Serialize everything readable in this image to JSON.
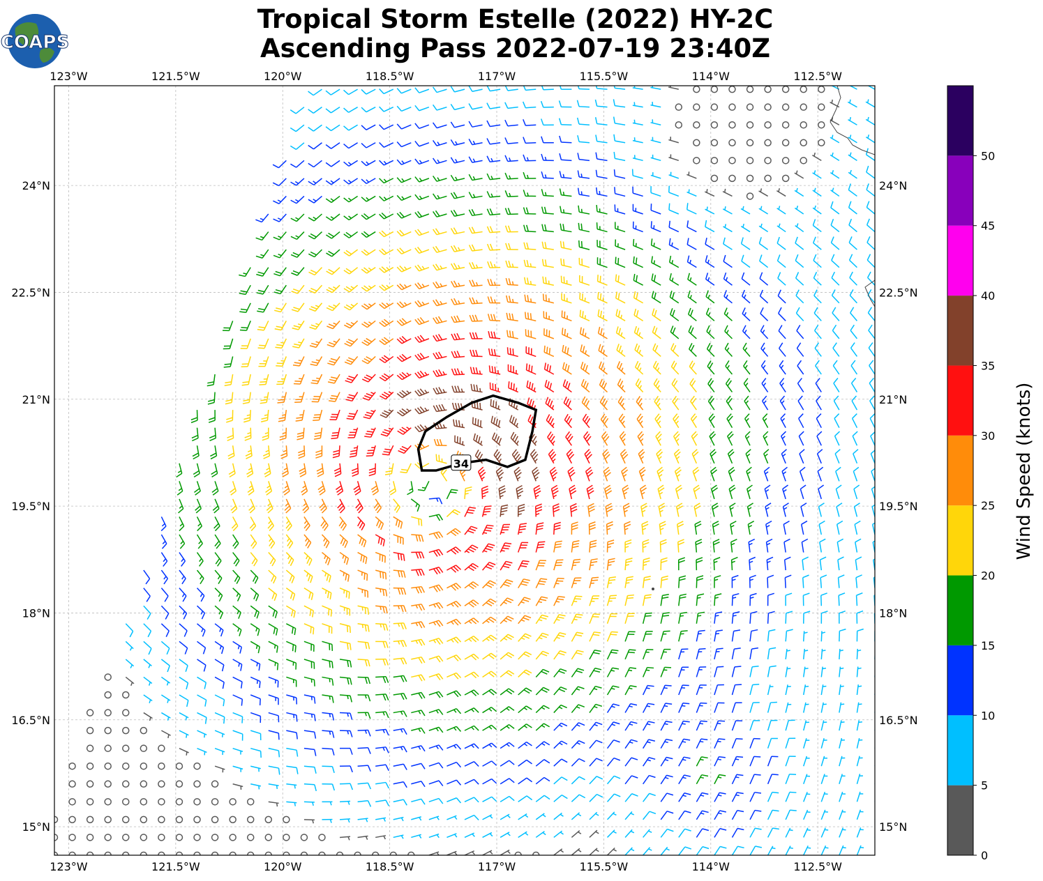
{
  "title": {
    "line1": "Tropical Storm Estelle (2022) HY-2C",
    "line2": "Ascending Pass 2022-07-19 23:40Z"
  },
  "logo": {
    "text": "COAPS"
  },
  "map": {
    "lon_range": [
      -123.2,
      -111.7
    ],
    "lat_range": [
      14.6,
      25.4
    ],
    "lon_ticks": [
      {
        "value": -123,
        "label": "123°W"
      },
      {
        "value": -121.5,
        "label": "121.5°W"
      },
      {
        "value": -120,
        "label": "120°W"
      },
      {
        "value": -118.5,
        "label": "118.5°W"
      },
      {
        "value": -117,
        "label": "117°W"
      },
      {
        "value": -115.5,
        "label": "115.5°W"
      },
      {
        "value": -114,
        "label": "114°W"
      },
      {
        "value": -112.5,
        "label": "112.5°W"
      }
    ],
    "lat_ticks": [
      {
        "value": 24,
        "label": "24°N"
      },
      {
        "value": 22.5,
        "label": "22.5°N"
      },
      {
        "value": 21,
        "label": "21°N"
      },
      {
        "value": 19.5,
        "label": "19.5°N"
      },
      {
        "value": 18,
        "label": "18°N"
      },
      {
        "value": 16.5,
        "label": "16.5°N"
      },
      {
        "value": 15,
        "label": "15°N"
      }
    ],
    "storm_center": {
      "lon": -117.9,
      "lat": 19.8
    },
    "swath_west_edge": [
      {
        "lon": -123.2,
        "lat": 15.2
      },
      {
        "lon": -119.6,
        "lat": 25.4
      }
    ],
    "contour": {
      "label": "34",
      "label_pos": {
        "lon": -117.5,
        "lat": 20.1
      },
      "points": [
        {
          "lon": -118.05,
          "lat": 20.0
        },
        {
          "lon": -118.1,
          "lat": 20.3
        },
        {
          "lon": -118.0,
          "lat": 20.55
        },
        {
          "lon": -117.7,
          "lat": 20.75
        },
        {
          "lon": -117.35,
          "lat": 20.95
        },
        {
          "lon": -117.05,
          "lat": 21.05
        },
        {
          "lon": -116.7,
          "lat": 20.95
        },
        {
          "lon": -116.45,
          "lat": 20.85
        },
        {
          "lon": -116.5,
          "lat": 20.55
        },
        {
          "lon": -116.6,
          "lat": 20.15
        },
        {
          "lon": -116.85,
          "lat": 20.05
        },
        {
          "lon": -117.15,
          "lat": 20.15
        },
        {
          "lon": -117.5,
          "lat": 20.1
        },
        {
          "lon": -117.85,
          "lat": 20.0
        }
      ]
    }
  },
  "colorbar": {
    "label": "Wind Speed (knots)",
    "bins": [
      {
        "from": 0,
        "to": 5,
        "color": "#595959"
      },
      {
        "from": 5,
        "to": 10,
        "color": "#00bfff"
      },
      {
        "from": 10,
        "to": 15,
        "color": "#0033ff"
      },
      {
        "from": 15,
        "to": 20,
        "color": "#009900"
      },
      {
        "from": 20,
        "to": 25,
        "color": "#ffd60a"
      },
      {
        "from": 25,
        "to": 30,
        "color": "#ff8c0a"
      },
      {
        "from": 30,
        "to": 35,
        "color": "#ff1010"
      },
      {
        "from": 35,
        "to": 40,
        "color": "#82412b"
      },
      {
        "from": 40,
        "to": 45,
        "color": "#ff00ee"
      },
      {
        "from": 45,
        "to": 50,
        "color": "#8800bb"
      },
      {
        "from": 50,
        "to": 55,
        "color": "#2b0060"
      }
    ],
    "ticks": [
      "0",
      "5",
      "10",
      "15",
      "20",
      "25",
      "30",
      "35",
      "40",
      "45",
      "50"
    ]
  }
}
